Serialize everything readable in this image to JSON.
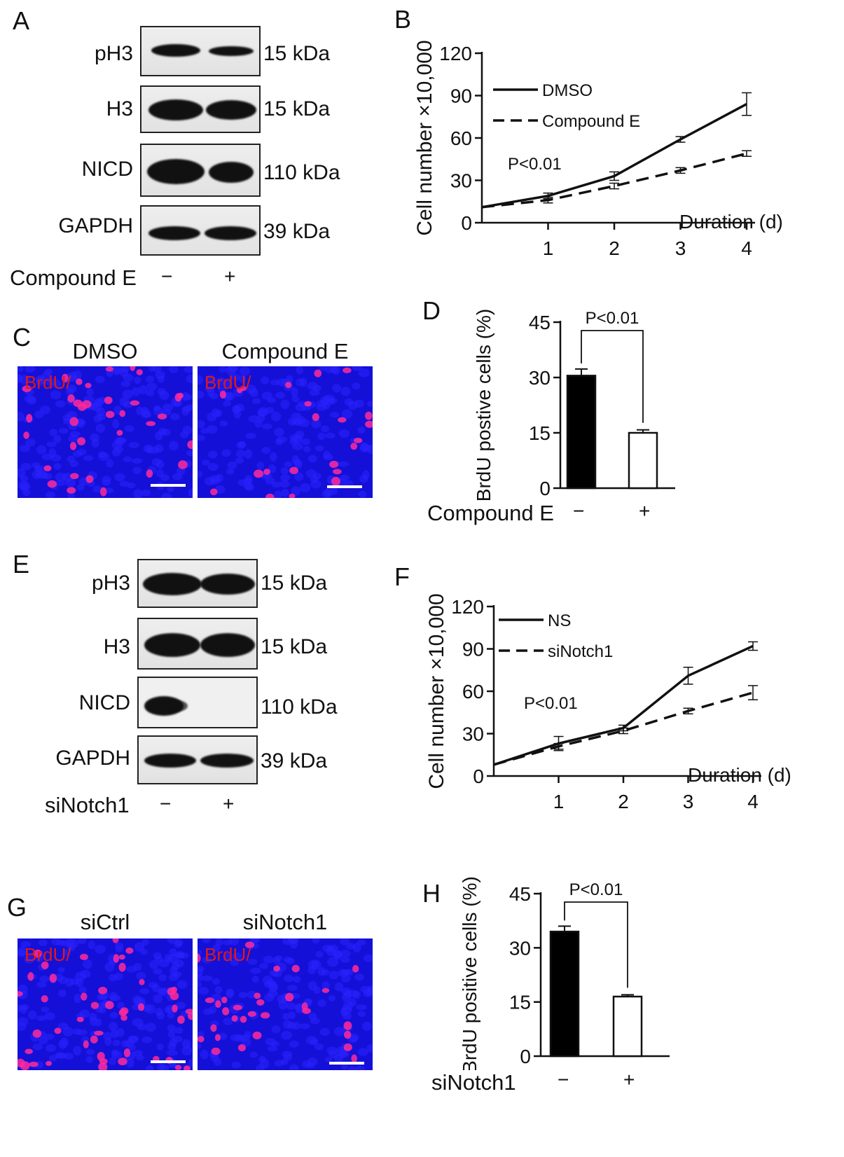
{
  "panels": {
    "A": {
      "letter": "A",
      "rows": [
        {
          "label": "pH3",
          "kda": "15 kDa"
        },
        {
          "label": "H3",
          "kda": "15 kDa"
        },
        {
          "label": "NICD",
          "kda": "110 kDa"
        },
        {
          "label": "GAPDH",
          "kda": "39 kDa"
        }
      ],
      "treatment": "Compound E",
      "signs": [
        "−",
        "+"
      ]
    },
    "B": {
      "letter": "B"
    },
    "C": {
      "letter": "C",
      "titles": [
        "DMSO",
        "Compound E"
      ],
      "stain_label": "BrdU/"
    },
    "D": {
      "letter": "D",
      "treatment": "Compound E",
      "signs": [
        "−",
        "+"
      ]
    },
    "E": {
      "letter": "E",
      "rows": [
        {
          "label": "pH3",
          "kda": "15 kDa"
        },
        {
          "label": "H3",
          "kda": "15 kDa"
        },
        {
          "label": "NICD",
          "kda": "110 kDa"
        },
        {
          "label": "GAPDH",
          "kda": "39 kDa"
        }
      ],
      "treatment": "siNotch1",
      "signs": [
        "−",
        "+"
      ]
    },
    "F": {
      "letter": "F"
    },
    "G": {
      "letter": "G",
      "titles": [
        "siCtrl",
        "siNotch1"
      ],
      "stain_label": "BrdU/"
    },
    "H": {
      "letter": "H",
      "treatment": "siNotch1",
      "signs": [
        "−",
        "+"
      ]
    }
  },
  "colors": {
    "nuclei_blue": "#1410d8",
    "brdu_magenta": "#ff2a9a",
    "brdu_label_red": "#e01818",
    "bar_filled": "#000000",
    "bar_open": "#ffffff"
  },
  "chart_data": [
    {
      "id": "B",
      "type": "line",
      "ylabel": "Cell number ×10,000",
      "xlabel": "Duration (d)",
      "xticks": [
        1,
        2,
        3,
        4
      ],
      "yticks": [
        0,
        30,
        60,
        90,
        120
      ],
      "ylim": [
        0,
        120
      ],
      "xlim": [
        0,
        4
      ],
      "annotation": "P<0.01",
      "legend_position": "top-left",
      "series": [
        {
          "name": "DMSO",
          "style": "solid",
          "x": [
            0,
            1,
            2,
            3,
            4
          ],
          "y": [
            11,
            19,
            33,
            59,
            84
          ],
          "err": [
            0,
            2,
            3,
            2,
            8
          ]
        },
        {
          "name": "Compound E",
          "style": "dashed",
          "x": [
            0,
            1,
            2,
            3,
            4
          ],
          "y": [
            11,
            16,
            26,
            37,
            49
          ],
          "err": [
            0,
            2,
            2,
            2,
            2
          ]
        }
      ]
    },
    {
      "id": "D",
      "type": "bar",
      "ylabel": "BrdU postive cells (%)",
      "yticks": [
        0,
        15,
        30,
        45
      ],
      "ylim": [
        0,
        45
      ],
      "annotation": "P<0.01",
      "values": [
        30.5,
        15
      ],
      "err": [
        1.8,
        0.8
      ],
      "fills": [
        "filled",
        "open"
      ]
    },
    {
      "id": "F",
      "type": "line",
      "ylabel": "Cell number ×10,000",
      "xlabel": "Duration (d)",
      "xticks": [
        1,
        2,
        3,
        4
      ],
      "yticks": [
        0,
        30,
        60,
        90,
        120
      ],
      "ylim": [
        0,
        120
      ],
      "xlim": [
        0,
        4
      ],
      "annotation": "P<0.01",
      "legend_position": "top-left",
      "series": [
        {
          "name": "NS",
          "style": "solid",
          "x": [
            0,
            1,
            2,
            3,
            4
          ],
          "y": [
            8,
            23,
            34,
            71,
            92
          ],
          "err": [
            0,
            5,
            2,
            6,
            3
          ]
        },
        {
          "name": "siNotch1",
          "style": "dashed",
          "x": [
            0,
            1,
            2,
            3,
            4
          ],
          "y": [
            8,
            21,
            32,
            46,
            59
          ],
          "err": [
            0,
            2,
            2,
            2,
            5
          ]
        }
      ]
    },
    {
      "id": "H",
      "type": "bar",
      "ylabel": "BrdU positive cells (%)",
      "yticks": [
        0,
        15,
        30,
        45
      ],
      "ylim": [
        0,
        45
      ],
      "annotation": "P<0.01",
      "values": [
        34.5,
        16.5
      ],
      "err": [
        1.5,
        0.5
      ],
      "fills": [
        "filled",
        "open"
      ]
    }
  ]
}
